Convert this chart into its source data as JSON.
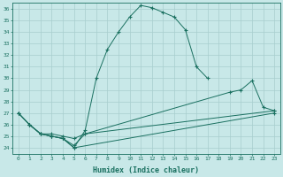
{
  "xlabel": "Humidex (Indice chaleur)",
  "xlim": [
    -0.5,
    23.5
  ],
  "ylim": [
    23.5,
    36.5
  ],
  "xticks": [
    0,
    1,
    2,
    3,
    4,
    5,
    6,
    7,
    8,
    9,
    10,
    11,
    12,
    13,
    14,
    15,
    16,
    17,
    18,
    19,
    20,
    21,
    22,
    23
  ],
  "yticks": [
    24,
    25,
    26,
    27,
    28,
    29,
    30,
    31,
    32,
    33,
    34,
    35,
    36
  ],
  "bg_color": "#c8e8e8",
  "grid_color": "#a8cece",
  "line_color": "#1a7060",
  "line1_x": [
    0,
    1,
    2,
    3,
    4,
    5,
    6,
    7,
    8,
    9,
    10,
    11,
    12,
    13,
    14,
    15,
    16,
    17
  ],
  "line1_y": [
    27.0,
    26.0,
    25.2,
    25.0,
    24.8,
    24.0,
    25.5,
    30.0,
    32.5,
    34.0,
    35.3,
    36.3,
    36.1,
    35.7,
    35.3,
    34.2,
    31.0,
    30.0
  ],
  "line2_x": [
    0,
    1,
    2,
    3,
    4,
    5,
    6,
    19,
    20,
    21,
    22,
    23
  ],
  "line2_y": [
    27.0,
    26.0,
    25.2,
    25.2,
    25.0,
    24.8,
    25.2,
    28.8,
    29.0,
    29.8,
    27.5,
    27.2
  ],
  "line3_x": [
    0,
    1,
    2,
    3,
    4,
    5,
    23
  ],
  "line3_y": [
    27.0,
    26.0,
    25.2,
    25.0,
    24.8,
    24.0,
    27.0
  ],
  "line4_x": [
    1,
    2,
    3,
    4,
    5,
    6,
    23
  ],
  "line4_y": [
    26.0,
    25.2,
    25.0,
    24.8,
    24.2,
    25.2,
    27.2
  ]
}
